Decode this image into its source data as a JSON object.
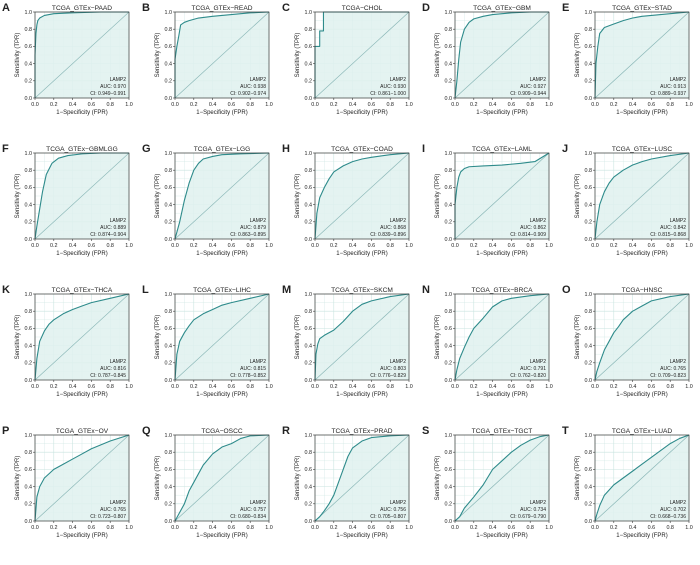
{
  "figure": {
    "colors": {
      "fill": "#dff1ef",
      "curve": "#2e8b8b",
      "diagonal": "#8cb8b8",
      "grid": "#c8e3df",
      "frame": "#3a3a3a",
      "text": "#222222"
    }
  },
  "chart_data": [
    {
      "panel": "A",
      "type": "line",
      "title": "TCGA_GTEx−PAAD",
      "xlabel": "1−Specificity (FPR)",
      "ylabel": "Sensitivity (TPR)",
      "gene": "LAMP2",
      "auc_text": "AUC: 0.970",
      "ci_text": "CI: 0.949−0.991",
      "auc": 0.97,
      "xlim": [
        0,
        1
      ],
      "ylim": [
        0,
        1
      ],
      "xticks": [
        "0.0",
        "0.2",
        "0.4",
        "0.6",
        "0.8",
        "1.0"
      ],
      "yticks": [
        "0.0",
        "0.2",
        "0.4",
        "0.6",
        "0.8",
        "1.0"
      ],
      "x": [
        0,
        0,
        0.01,
        0.02,
        0.03,
        0.05,
        0.1,
        0.2,
        0.4,
        0.7,
        1.0
      ],
      "y": [
        0,
        0.5,
        0.75,
        0.85,
        0.9,
        0.93,
        0.96,
        0.98,
        0.99,
        1.0,
        1.0
      ]
    },
    {
      "panel": "B",
      "type": "line",
      "title": "TCGA_GTEx−READ",
      "xlabel": "1−Specificity (FPR)",
      "ylabel": "Sensitivity (TPR)",
      "gene": "LAMP2",
      "auc_text": "AUC: 0.938",
      "ci_text": "CI: 0.902−0.974",
      "auc": 0.938,
      "xlim": [
        0,
        1
      ],
      "ylim": [
        0,
        1
      ],
      "xticks": [
        "0.0",
        "0.2",
        "0.4",
        "0.6",
        "0.8",
        "1.0"
      ],
      "yticks": [
        "0.0",
        "0.2",
        "0.4",
        "0.6",
        "0.8",
        "1.0"
      ],
      "x": [
        0,
        0,
        0.02,
        0.04,
        0.06,
        0.1,
        0.15,
        0.25,
        0.4,
        0.6,
        0.8,
        1.0
      ],
      "y": [
        0,
        0.45,
        0.6,
        0.72,
        0.85,
        0.88,
        0.9,
        0.93,
        0.95,
        0.97,
        0.99,
        1.0
      ]
    },
    {
      "panel": "C",
      "type": "line",
      "title": "TCGA−CHOL",
      "xlabel": "1−Specificity (FPR)",
      "ylabel": "Sensitivity (TPR)",
      "gene": "LAMP2",
      "auc_text": "AUC: 0.930",
      "ci_text": "CI: 0.861−1.000",
      "auc": 0.93,
      "xlim": [
        0,
        1
      ],
      "ylim": [
        0,
        1
      ],
      "xticks": [
        "0.0",
        "0.2",
        "0.4",
        "0.6",
        "0.8",
        "1.0"
      ],
      "yticks": [
        "0.0",
        "0.2",
        "0.4",
        "0.6",
        "0.8",
        "1.0"
      ],
      "x": [
        0,
        0,
        0.05,
        0.05,
        0.09,
        0.09,
        1.0
      ],
      "y": [
        0,
        0.6,
        0.6,
        0.78,
        0.78,
        1.0,
        1.0
      ]
    },
    {
      "panel": "D",
      "type": "line",
      "title": "TCGA_GTEx−GBM",
      "xlabel": "1−Specificity (FPR)",
      "ylabel": "Sensitivity (TPR)",
      "gene": "LAMP2",
      "auc_text": "AUC: 0.927",
      "ci_text": "CI: 0.909−0.944",
      "auc": 0.927,
      "xlim": [
        0,
        1
      ],
      "ylim": [
        0,
        1
      ],
      "xticks": [
        "0.0",
        "0.2",
        "0.4",
        "0.6",
        "0.8",
        "1.0"
      ],
      "yticks": [
        "0.0",
        "0.2",
        "0.4",
        "0.6",
        "0.8",
        "1.0"
      ],
      "x": [
        0,
        0.02,
        0.04,
        0.06,
        0.1,
        0.15,
        0.2,
        0.3,
        0.4,
        0.6,
        0.8,
        1.0
      ],
      "y": [
        0,
        0.2,
        0.45,
        0.65,
        0.8,
        0.88,
        0.92,
        0.95,
        0.97,
        0.99,
        1.0,
        1.0
      ]
    },
    {
      "panel": "E",
      "type": "line",
      "title": "TCGA_GTEx−STAD",
      "xlabel": "1−Specificity (FPR)",
      "ylabel": "Sensitivity (TPR)",
      "gene": "LAMP2",
      "auc_text": "AUC: 0.913",
      "ci_text": "CI: 0.889−0.937",
      "auc": 0.913,
      "xlim": [
        0,
        1
      ],
      "ylim": [
        0,
        1
      ],
      "xticks": [
        "0.0",
        "0.2",
        "0.4",
        "0.6",
        "0.8",
        "1.0"
      ],
      "yticks": [
        "0.0",
        "0.2",
        "0.4",
        "0.6",
        "0.8",
        "1.0"
      ],
      "x": [
        0,
        0.01,
        0.03,
        0.05,
        0.1,
        0.2,
        0.3,
        0.4,
        0.5,
        0.7,
        0.9,
        1.0
      ],
      "y": [
        0,
        0.4,
        0.6,
        0.75,
        0.82,
        0.86,
        0.9,
        0.93,
        0.95,
        0.97,
        0.99,
        1.0
      ]
    },
    {
      "panel": "F",
      "type": "line",
      "title": "TCGA_GTEx−GBMLGG",
      "xlabel": "1−Specificity (FPR)",
      "ylabel": "Sensitivity (TPR)",
      "gene": "LAMP2",
      "auc_text": "AUC: 0.889",
      "ci_text": "CI: 0.874−0.904",
      "auc": 0.889,
      "xlim": [
        0,
        1
      ],
      "ylim": [
        0,
        1
      ],
      "xticks": [
        "0.0",
        "0.2",
        "0.4",
        "0.6",
        "0.8",
        "1.0"
      ],
      "yticks": [
        "0.0",
        "0.2",
        "0.4",
        "0.6",
        "0.8",
        "1.0"
      ],
      "x": [
        0,
        0.02,
        0.05,
        0.08,
        0.12,
        0.18,
        0.25,
        0.35,
        0.5,
        0.7,
        1.0
      ],
      "y": [
        0,
        0.15,
        0.35,
        0.55,
        0.75,
        0.88,
        0.94,
        0.97,
        0.99,
        1.0,
        1.0
      ]
    },
    {
      "panel": "G",
      "type": "line",
      "title": "TCGA_GTEx−LGG",
      "xlabel": "1−Specificity (FPR)",
      "ylabel": "Sensitivity (TPR)",
      "gene": "LAMP2",
      "auc_text": "AUC: 0.879",
      "ci_text": "CI: 0.863−0.895",
      "auc": 0.879,
      "xlim": [
        0,
        1
      ],
      "ylim": [
        0,
        1
      ],
      "xticks": [
        "0.0",
        "0.2",
        "0.4",
        "0.6",
        "0.8",
        "1.0"
      ],
      "yticks": [
        "0.0",
        "0.2",
        "0.4",
        "0.6",
        "0.8",
        "1.0"
      ],
      "x": [
        0,
        0.05,
        0.1,
        0.15,
        0.2,
        0.25,
        0.3,
        0.4,
        0.5,
        0.7,
        1.0
      ],
      "y": [
        0,
        0.2,
        0.45,
        0.65,
        0.8,
        0.88,
        0.93,
        0.96,
        0.98,
        0.99,
        1.0
      ]
    },
    {
      "panel": "H",
      "type": "line",
      "title": "TCGA_GTEx−COAD",
      "xlabel": "1−Specificity (FPR)",
      "ylabel": "Sensitivity (TPR)",
      "gene": "LAMP2",
      "auc_text": "AUC: 0.868",
      "ci_text": "CI: 0.839−0.896",
      "auc": 0.868,
      "xlim": [
        0,
        1
      ],
      "ylim": [
        0,
        1
      ],
      "xticks": [
        "0.0",
        "0.2",
        "0.4",
        "0.6",
        "0.8",
        "1.0"
      ],
      "yticks": [
        "0.0",
        "0.2",
        "0.4",
        "0.6",
        "0.8",
        "1.0"
      ],
      "x": [
        0,
        0.02,
        0.05,
        0.1,
        0.15,
        0.2,
        0.3,
        0.4,
        0.5,
        0.6,
        0.8,
        1.0
      ],
      "y": [
        0,
        0.3,
        0.48,
        0.6,
        0.7,
        0.78,
        0.85,
        0.9,
        0.93,
        0.95,
        0.98,
        1.0
      ]
    },
    {
      "panel": "I",
      "type": "line",
      "title": "TCGA_GTEx−LAML",
      "xlabel": "1−Specificity (FPR)",
      "ylabel": "Sensitivity (TPR)",
      "gene": "LAMP2",
      "auc_text": "AUC: 0.862",
      "ci_text": "CI: 0.814−0.909",
      "auc": 0.862,
      "xlim": [
        0,
        1
      ],
      "ylim": [
        0,
        1
      ],
      "xticks": [
        "0.0",
        "0.2",
        "0.4",
        "0.6",
        "0.8",
        "1.0"
      ],
      "yticks": [
        "0.0",
        "0.2",
        "0.4",
        "0.6",
        "0.8",
        "1.0"
      ],
      "x": [
        0,
        0,
        0.02,
        0.04,
        0.06,
        0.1,
        0.15,
        0.3,
        0.5,
        0.7,
        0.85,
        1.0
      ],
      "y": [
        0,
        0.4,
        0.6,
        0.72,
        0.78,
        0.82,
        0.84,
        0.85,
        0.86,
        0.88,
        0.9,
        1.0
      ]
    },
    {
      "panel": "J",
      "type": "line",
      "title": "TCGA_GTEx−LUSC",
      "xlabel": "1−Specificity (FPR)",
      "ylabel": "Sensitivity (TPR)",
      "gene": "LAMP2",
      "auc_text": "AUC: 0.842",
      "ci_text": "CI: 0.815−0.868",
      "auc": 0.842,
      "xlim": [
        0,
        1
      ],
      "ylim": [
        0,
        1
      ],
      "xticks": [
        "0.0",
        "0.2",
        "0.4",
        "0.6",
        "0.8",
        "1.0"
      ],
      "yticks": [
        "0.0",
        "0.2",
        "0.4",
        "0.6",
        "0.8",
        "1.0"
      ],
      "x": [
        0,
        0.02,
        0.05,
        0.1,
        0.15,
        0.2,
        0.3,
        0.4,
        0.5,
        0.6,
        0.8,
        1.0
      ],
      "y": [
        0,
        0.2,
        0.4,
        0.55,
        0.65,
        0.72,
        0.8,
        0.86,
        0.9,
        0.93,
        0.97,
        1.0
      ]
    },
    {
      "panel": "K",
      "type": "line",
      "title": "TCGA_GTEx−THCA",
      "xlabel": "1−Specificity (FPR)",
      "ylabel": "Sensitivity (TPR)",
      "gene": "LAMP2",
      "auc_text": "AUC: 0.816",
      "ci_text": "CI: 0.787−0.845",
      "auc": 0.816,
      "xlim": [
        0,
        1
      ],
      "ylim": [
        0,
        1
      ],
      "xticks": [
        "0.0",
        "0.2",
        "0.4",
        "0.6",
        "0.8",
        "1.0"
      ],
      "yticks": [
        "0.0",
        "0.2",
        "0.4",
        "0.6",
        "0.8",
        "1.0"
      ],
      "x": [
        0,
        0.02,
        0.05,
        0.1,
        0.15,
        0.2,
        0.3,
        0.4,
        0.5,
        0.6,
        0.8,
        1.0
      ],
      "y": [
        0,
        0.25,
        0.45,
        0.57,
        0.65,
        0.7,
        0.77,
        0.82,
        0.86,
        0.9,
        0.95,
        1.0
      ]
    },
    {
      "panel": "L",
      "type": "line",
      "title": "TCGA_GTEx−LIHC",
      "xlabel": "1−Specificity (FPR)",
      "ylabel": "Sensitivity (TPR)",
      "gene": "LAMP2",
      "auc_text": "AUC: 0.815",
      "ci_text": "CI: 0.778−0.852",
      "auc": 0.815,
      "xlim": [
        0,
        1
      ],
      "ylim": [
        0,
        1
      ],
      "xticks": [
        "0.0",
        "0.2",
        "0.4",
        "0.6",
        "0.8",
        "1.0"
      ],
      "yticks": [
        "0.0",
        "0.2",
        "0.4",
        "0.6",
        "0.8",
        "1.0"
      ],
      "x": [
        0,
        0.02,
        0.05,
        0.1,
        0.15,
        0.2,
        0.3,
        0.4,
        0.5,
        0.6,
        0.8,
        1.0
      ],
      "y": [
        0,
        0.3,
        0.45,
        0.55,
        0.63,
        0.7,
        0.77,
        0.82,
        0.87,
        0.9,
        0.95,
        1.0
      ]
    },
    {
      "panel": "M",
      "type": "line",
      "title": "TCGA_GTEx−SKCM",
      "xlabel": "1−Specificity (FPR)",
      "ylabel": "Sensitivity (TPR)",
      "gene": "LAMP2",
      "auc_text": "AUC: 0.803",
      "ci_text": "CI: 0.776−0.829",
      "auc": 0.803,
      "xlim": [
        0,
        1
      ],
      "ylim": [
        0,
        1
      ],
      "xticks": [
        "0.0",
        "0.2",
        "0.4",
        "0.6",
        "0.8",
        "1.0"
      ],
      "yticks": [
        "0.0",
        "0.2",
        "0.4",
        "0.6",
        "0.8",
        "1.0"
      ],
      "x": [
        0,
        0.01,
        0.03,
        0.05,
        0.1,
        0.2,
        0.3,
        0.4,
        0.5,
        0.6,
        0.8,
        1.0
      ],
      "y": [
        0,
        0.3,
        0.42,
        0.48,
        0.52,
        0.58,
        0.68,
        0.8,
        0.88,
        0.92,
        0.97,
        1.0
      ]
    },
    {
      "panel": "N",
      "type": "line",
      "title": "TCGA_GTEx−BRCA",
      "xlabel": "1−Specificity (FPR)",
      "ylabel": "Sensitivity (TPR)",
      "gene": "LAMP2",
      "auc_text": "AUC: 0.791",
      "ci_text": "CI: 0.762−0.820",
      "auc": 0.791,
      "xlim": [
        0,
        1
      ],
      "ylim": [
        0,
        1
      ],
      "xticks": [
        "0.0",
        "0.2",
        "0.4",
        "0.6",
        "0.8",
        "1.0"
      ],
      "yticks": [
        "0.0",
        "0.2",
        "0.4",
        "0.6",
        "0.8",
        "1.0"
      ],
      "x": [
        0,
        0.02,
        0.05,
        0.1,
        0.15,
        0.2,
        0.3,
        0.4,
        0.5,
        0.6,
        0.8,
        1.0
      ],
      "y": [
        0,
        0.12,
        0.25,
        0.38,
        0.5,
        0.6,
        0.72,
        0.85,
        0.92,
        0.95,
        0.98,
        1.0
      ]
    },
    {
      "panel": "O",
      "type": "line",
      "title": "TCGA−HNSC",
      "xlabel": "1−Specificity (FPR)",
      "ylabel": "Sensitivity (TPR)",
      "gene": "LAMP2",
      "auc_text": "AUC: 0.765",
      "ci_text": "CI: 0.709−0.823",
      "auc": 0.765,
      "xlim": [
        0,
        1
      ],
      "ylim": [
        0,
        1
      ],
      "xticks": [
        "0.0",
        "0.2",
        "0.4",
        "0.6",
        "0.8",
        "1.0"
      ],
      "yticks": [
        "0.0",
        "0.2",
        "0.4",
        "0.6",
        "0.8",
        "1.0"
      ],
      "x": [
        0,
        0.02,
        0.05,
        0.1,
        0.15,
        0.2,
        0.25,
        0.3,
        0.4,
        0.5,
        0.6,
        0.8,
        1.0
      ],
      "y": [
        0,
        0.1,
        0.2,
        0.35,
        0.45,
        0.55,
        0.62,
        0.7,
        0.8,
        0.86,
        0.92,
        0.97,
        1.0
      ]
    },
    {
      "panel": "P",
      "type": "line",
      "title": "TCGA_GTEx−OV",
      "xlabel": "1−Specificity (FPR)",
      "ylabel": "Sensitivity (TPR)",
      "gene": "LAMP2",
      "auc_text": "AUC: 0.765",
      "ci_text": "CI: 0.723−0.807",
      "auc": 0.765,
      "xlim": [
        0,
        1
      ],
      "ylim": [
        0,
        1
      ],
      "xticks": [
        "0.0",
        "0.2",
        "0.4",
        "0.6",
        "0.8",
        "1.0"
      ],
      "yticks": [
        "0.0",
        "0.2",
        "0.4",
        "0.6",
        "0.8",
        "1.0"
      ],
      "x": [
        0,
        0.02,
        0.05,
        0.1,
        0.2,
        0.3,
        0.4,
        0.5,
        0.6,
        0.8,
        1.0
      ],
      "y": [
        0,
        0.28,
        0.4,
        0.5,
        0.6,
        0.66,
        0.72,
        0.78,
        0.84,
        0.93,
        1.0
      ]
    },
    {
      "panel": "Q",
      "type": "line",
      "title": "TCGA−OSCC",
      "xlabel": "1−Specificity (FPR)",
      "ylabel": "Sensitivity (TPR)",
      "gene": "LAMP2",
      "auc_text": "AUC: 0.757",
      "ci_text": "CI: 0.680−0.834",
      "auc": 0.757,
      "xlim": [
        0,
        1
      ],
      "ylim": [
        0,
        1
      ],
      "xticks": [
        "0.0",
        "0.2",
        "0.4",
        "0.6",
        "0.8",
        "1.0"
      ],
      "yticks": [
        "0.0",
        "0.2",
        "0.4",
        "0.6",
        "0.8",
        "1.0"
      ],
      "x": [
        0,
        0.05,
        0.1,
        0.15,
        0.2,
        0.25,
        0.3,
        0.4,
        0.5,
        0.6,
        0.7,
        0.8,
        1.0
      ],
      "y": [
        0,
        0.1,
        0.2,
        0.35,
        0.45,
        0.55,
        0.65,
        0.78,
        0.86,
        0.9,
        0.96,
        0.99,
        1.0
      ]
    },
    {
      "panel": "R",
      "type": "line",
      "title": "TCGA_GTEx−PRAD",
      "xlabel": "1−Specificity (FPR)",
      "ylabel": "Sensitivity (TPR)",
      "gene": "LAMP2",
      "auc_text": "AUC: 0.756",
      "ci_text": "CI: 0.705−0.807",
      "auc": 0.756,
      "xlim": [
        0,
        1
      ],
      "ylim": [
        0,
        1
      ],
      "xticks": [
        "0.0",
        "0.2",
        "0.4",
        "0.6",
        "0.8",
        "1.0"
      ],
      "yticks": [
        "0.0",
        "0.2",
        "0.4",
        "0.6",
        "0.8",
        "1.0"
      ],
      "x": [
        0,
        0.05,
        0.1,
        0.15,
        0.2,
        0.25,
        0.3,
        0.35,
        0.4,
        0.5,
        0.6,
        0.8,
        1.0
      ],
      "y": [
        0,
        0.05,
        0.12,
        0.2,
        0.3,
        0.45,
        0.6,
        0.75,
        0.85,
        0.93,
        0.97,
        0.99,
        1.0
      ]
    },
    {
      "panel": "S",
      "type": "line",
      "title": "TCGA_GTEx−TGCT",
      "xlabel": "1−Specificity (FPR)",
      "ylabel": "Sensitivity (TPR)",
      "gene": "LAMP2",
      "auc_text": "AUC: 0.734",
      "ci_text": "CI: 0.679−0.790",
      "auc": 0.734,
      "xlim": [
        0,
        1
      ],
      "ylim": [
        0,
        1
      ],
      "xticks": [
        "0.0",
        "0.2",
        "0.4",
        "0.6",
        "0.8",
        "1.0"
      ],
      "yticks": [
        "0.0",
        "0.2",
        "0.4",
        "0.6",
        "0.8",
        "1.0"
      ],
      "x": [
        0,
        0.05,
        0.1,
        0.2,
        0.3,
        0.4,
        0.5,
        0.6,
        0.7,
        0.8,
        0.9,
        1.0
      ],
      "y": [
        0,
        0.05,
        0.15,
        0.28,
        0.42,
        0.6,
        0.7,
        0.8,
        0.88,
        0.94,
        0.98,
        1.0
      ]
    },
    {
      "panel": "T",
      "type": "line",
      "title": "TCGA_GTEx−LUAD",
      "xlabel": "1−Specificity (FPR)",
      "ylabel": "Sensitivity (TPR)",
      "gene": "LAMP2",
      "auc_text": "AUC: 0.702",
      "ci_text": "CI: 0.668−0.736",
      "auc": 0.702,
      "xlim": [
        0,
        1
      ],
      "ylim": [
        0,
        1
      ],
      "xticks": [
        "0.0",
        "0.2",
        "0.4",
        "0.6",
        "0.8",
        "1.0"
      ],
      "yticks": [
        "0.0",
        "0.2",
        "0.4",
        "0.6",
        "0.8",
        "1.0"
      ],
      "x": [
        0,
        0.02,
        0.05,
        0.1,
        0.2,
        0.3,
        0.4,
        0.5,
        0.6,
        0.7,
        0.8,
        0.9,
        1.0
      ],
      "y": [
        0,
        0.08,
        0.18,
        0.3,
        0.42,
        0.5,
        0.58,
        0.66,
        0.74,
        0.82,
        0.9,
        0.96,
        1.0
      ]
    }
  ]
}
